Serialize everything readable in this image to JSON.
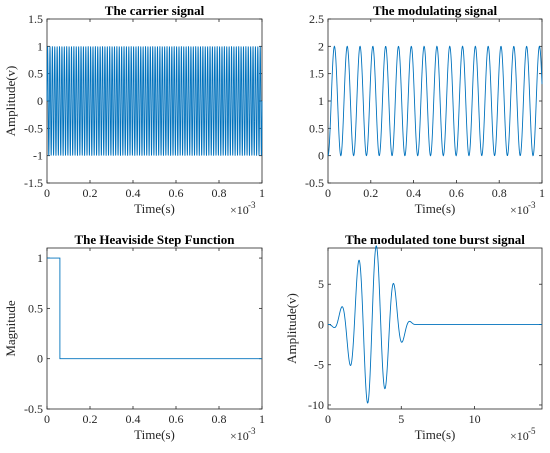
{
  "colors": {
    "series": "#0072BD",
    "axis": "#262626"
  },
  "chart_data": [
    {
      "id": "carrier",
      "type": "line",
      "title": "The carrier signal",
      "xlabel": "Time(s)",
      "ylabel": "Amplitude(v)",
      "xlim": [
        0,
        1
      ],
      "ylim": [
        -1.5,
        1.5
      ],
      "xticks": [
        0,
        0.2,
        0.4,
        0.6,
        0.8,
        1
      ],
      "xticklabels": [
        "0",
        "0.2",
        "0.4",
        "0.6",
        "0.8",
        "1"
      ],
      "yticks": [
        -1.5,
        -1,
        -0.5,
        0,
        0.5,
        1,
        1.5
      ],
      "yticklabels": [
        "-1.5",
        "-1",
        "-0.5",
        "0",
        "0.5",
        "1",
        "1.5"
      ],
      "x_exponent": {
        "base": "×10",
        "power": "-3"
      },
      "series": [
        {
          "function": "sine",
          "amplitude": 1,
          "offset": 0,
          "cycles": 90,
          "x_start": 0,
          "x_end": 1
        }
      ]
    },
    {
      "id": "modulating",
      "type": "line",
      "title": "The modulating signal",
      "xlabel": "Time(s)",
      "ylabel": "",
      "xlim": [
        0,
        1
      ],
      "ylim": [
        -0.5,
        2.5
      ],
      "xticks": [
        0,
        0.2,
        0.4,
        0.6,
        0.8,
        1
      ],
      "xticklabels": [
        "0",
        "0.2",
        "0.4",
        "0.6",
        "0.8",
        "1"
      ],
      "yticks": [
        -0.5,
        0,
        0.5,
        1,
        1.5,
        2,
        2.5
      ],
      "yticklabels": [
        "-0.5",
        "0",
        "0.5",
        "1",
        "1.5",
        "2",
        "2.5"
      ],
      "x_exponent": {
        "base": "×10",
        "power": "-3"
      },
      "series": [
        {
          "function": "one_minus_cos",
          "amplitude": 1,
          "offset": 1,
          "cycles": 16.7,
          "x_start": 0,
          "x_end": 1
        }
      ]
    },
    {
      "id": "heaviside",
      "type": "line",
      "title": "The Heaviside Step Function",
      "xlabel": "Time(s)",
      "ylabel": "Magnitude",
      "xlim": [
        0,
        1
      ],
      "ylim": [
        -0.5,
        1.1
      ],
      "xticks": [
        0,
        0.2,
        0.4,
        0.6,
        0.8,
        1
      ],
      "xticklabels": [
        "0",
        "0.2",
        "0.4",
        "0.6",
        "0.8",
        "1"
      ],
      "yticks": [
        -0.5,
        0,
        0.5,
        1
      ],
      "yticklabels": [
        "-0.5",
        "0",
        "0.5",
        "1"
      ],
      "x_exponent": {
        "base": "×10",
        "power": "-3"
      },
      "series": [
        {
          "function": "step",
          "step_at": 0.06,
          "high": 1,
          "low": 0,
          "x_start": 0,
          "x_end": 1
        }
      ]
    },
    {
      "id": "tone-burst",
      "type": "line",
      "title": "The modulated tone burst signal",
      "xlabel": "Time(s)",
      "ylabel": "Amplitude(v)",
      "xlim": [
        0,
        14.6
      ],
      "ylim": [
        -10.5,
        9.5
      ],
      "xticks": [
        0,
        5,
        10
      ],
      "xticklabels": [
        "0",
        "5",
        "10"
      ],
      "yticks": [
        -10,
        -5,
        0,
        5
      ],
      "yticklabels": [
        "-10",
        "-5",
        "0",
        "5"
      ],
      "x_exponent": {
        "base": "×10",
        "power": "-5"
      },
      "series": [
        {
          "function": "tone_burst",
          "burst_end": 6.0,
          "cycles": 5,
          "amplitude": 10,
          "x_start": 0,
          "x_end": 14.6
        }
      ]
    }
  ]
}
